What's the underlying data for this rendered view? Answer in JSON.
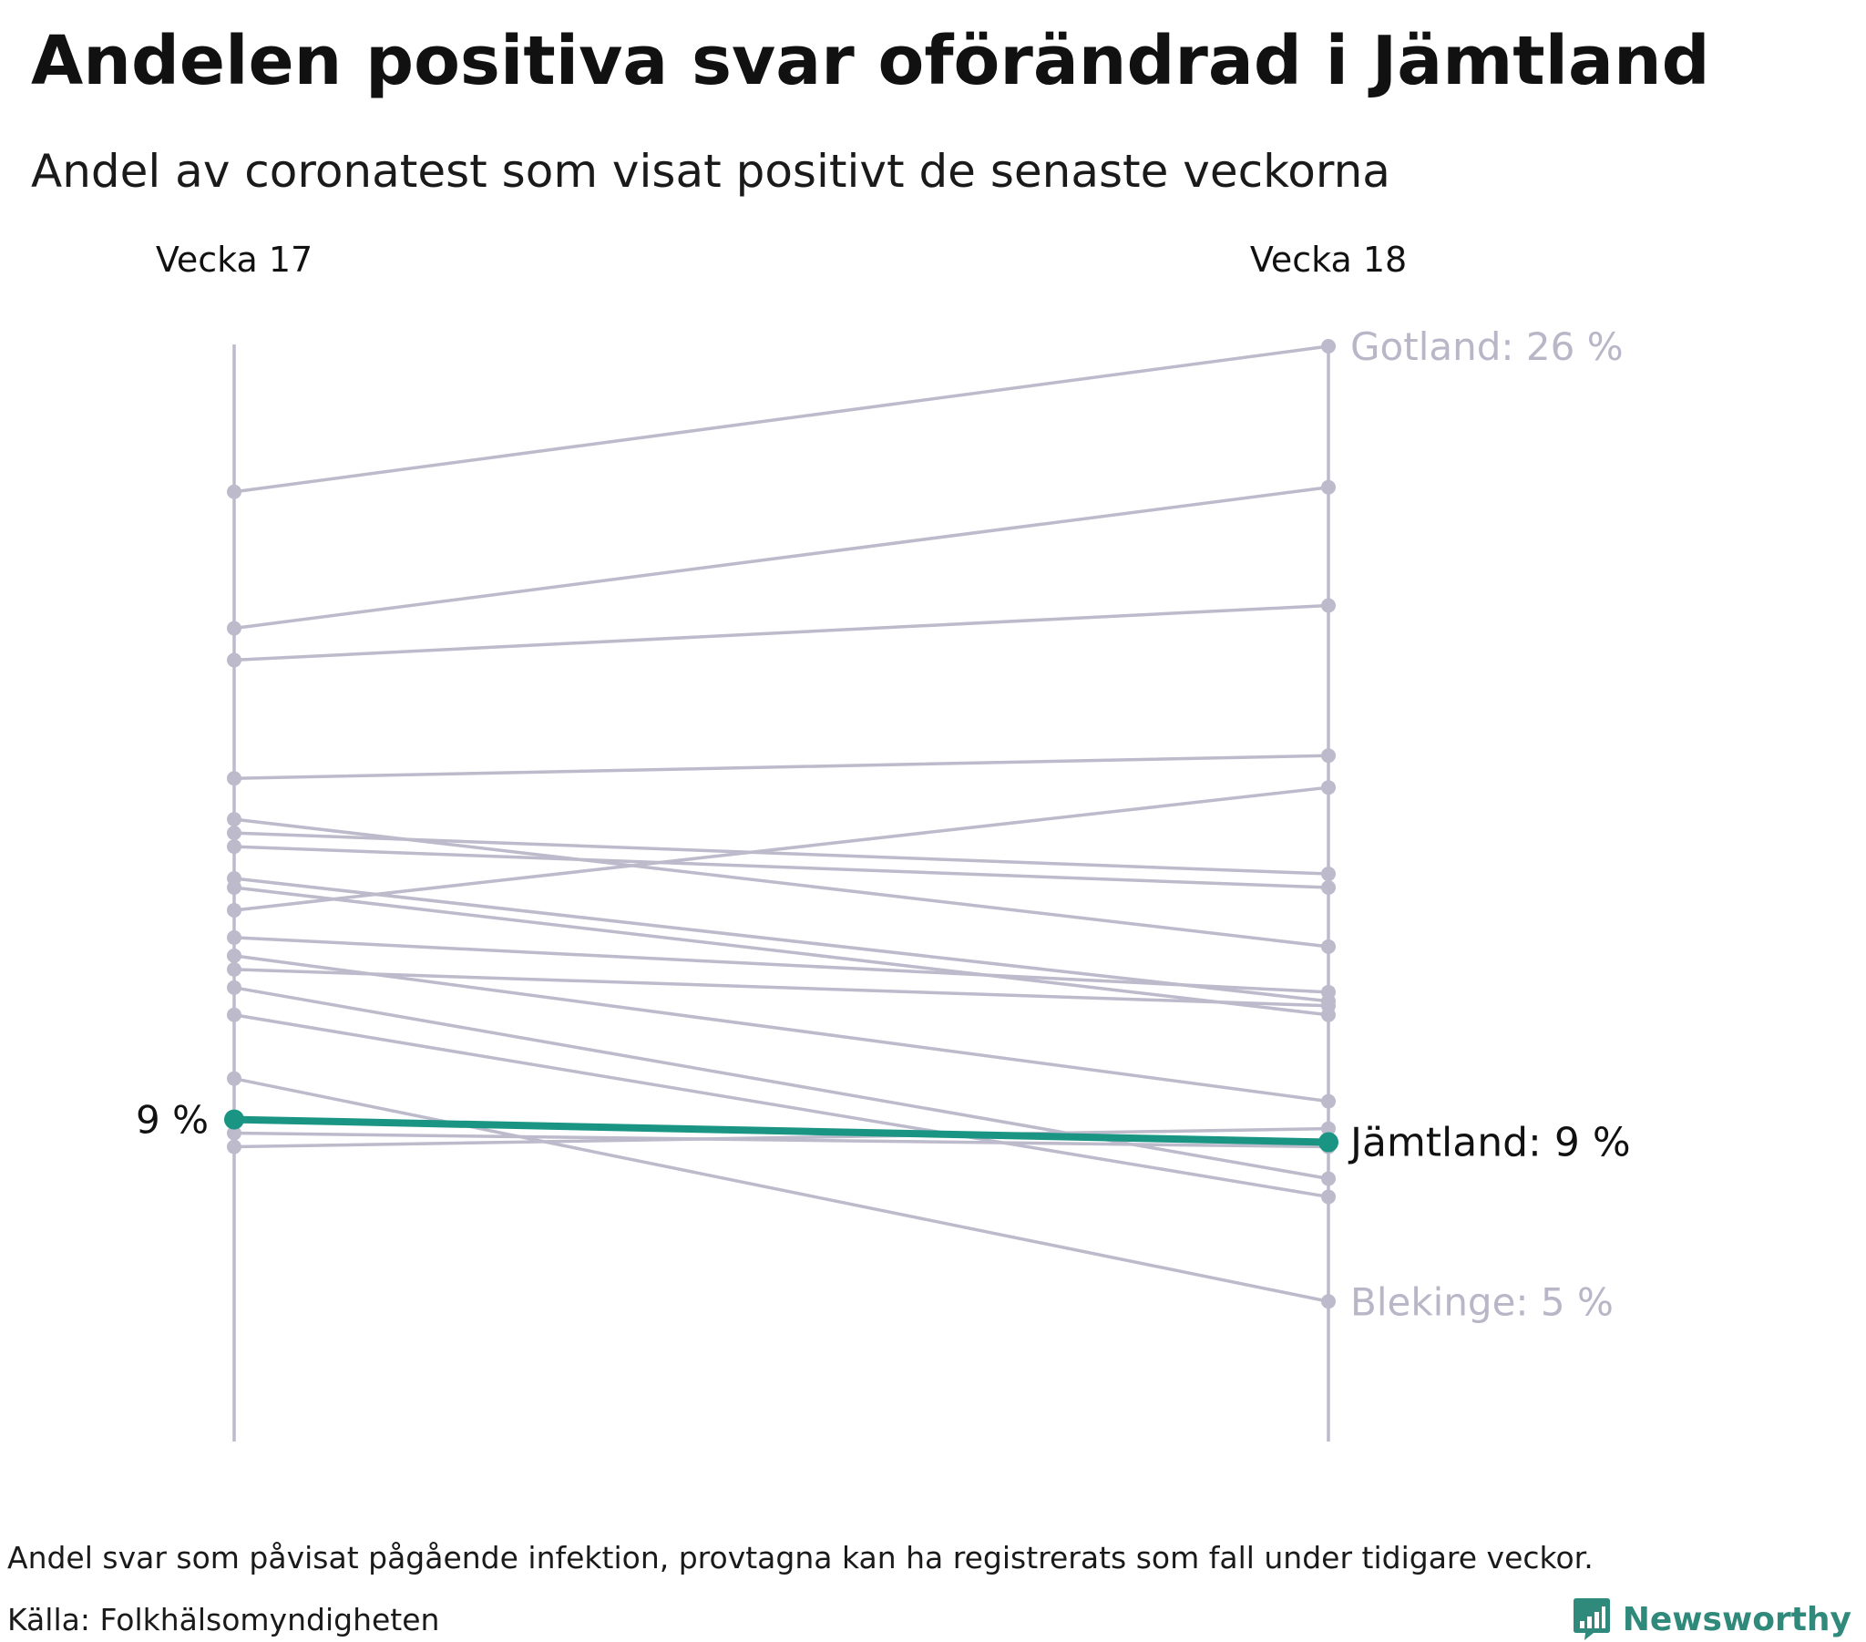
{
  "title": "Andelen positiva svar oförändrad i Jämtland",
  "subtitle": "Andel av coronatest som visat positivt de senaste veckorna",
  "footnote": "Andel svar som påvisat pågående infektion, provtagna kan ha registrerats som fall under tidigare veckor.",
  "source": "Källa: Folkhälsomyndigheten",
  "brand": {
    "name": "Newsworthy",
    "icon": "newsworthy-logo-icon"
  },
  "colors": {
    "highlight": "#1a9583",
    "other": "#bcbacb",
    "text": "#111111",
    "muted_label": "#b8b6c7",
    "brand": "#2f8a7c"
  },
  "chart_data": {
    "type": "slope",
    "categories": [
      "Vecka 17",
      "Vecka 18"
    ],
    "ylim": [
      2,
      26
    ],
    "series": [
      {
        "name": "Gotland",
        "values": [
          22.8,
          26.0
        ],
        "label": "Gotland: 26 %"
      },
      {
        "name": "",
        "values": [
          19.8,
          22.9
        ]
      },
      {
        "name": "",
        "values": [
          19.1,
          20.3
        ]
      },
      {
        "name": "",
        "values": [
          16.5,
          17.0
        ]
      },
      {
        "name": "",
        "values": [
          15.6,
          12.8
        ]
      },
      {
        "name": "",
        "values": [
          15.3,
          14.4
        ]
      },
      {
        "name": "",
        "values": [
          15.0,
          14.1
        ]
      },
      {
        "name": "",
        "values": [
          14.3,
          11.6
        ]
      },
      {
        "name": "",
        "values": [
          14.1,
          11.3
        ]
      },
      {
        "name": "",
        "values": [
          13.6,
          16.3
        ]
      },
      {
        "name": "",
        "values": [
          13.0,
          11.8
        ]
      },
      {
        "name": "",
        "values": [
          12.6,
          9.4
        ]
      },
      {
        "name": "",
        "values": [
          12.3,
          11.5
        ]
      },
      {
        "name": "",
        "values": [
          11.9,
          7.7
        ]
      },
      {
        "name": "",
        "values": [
          11.3,
          7.3
        ]
      },
      {
        "name": "Blekinge",
        "values": [
          9.9,
          5.0
        ],
        "label": "Blekinge: 5 %"
      },
      {
        "name": "",
        "values": [
          8.7,
          8.4
        ]
      },
      {
        "name": "",
        "values": [
          8.4,
          8.8
        ]
      },
      {
        "name": "Jämtland",
        "values": [
          9.0,
          8.5
        ],
        "label": "Jämtland: 9 %",
        "start_label": "9 %",
        "highlight": true
      }
    ]
  }
}
